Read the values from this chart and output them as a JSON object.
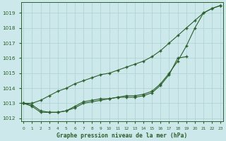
{
  "title": "Graphe pression niveau de la mer (hPa)",
  "background_color": "#cce8ea",
  "grid_color": "#b0d4d4",
  "line_color": "#2a5e2a",
  "ylim": [
    1011.8,
    1019.7
  ],
  "yticks": [
    1012,
    1013,
    1014,
    1015,
    1016,
    1017,
    1018,
    1019
  ],
  "x_labels": [
    "0",
    "1",
    "2",
    "3",
    "4",
    "5",
    "6",
    "7",
    "8",
    "9",
    "10",
    "11",
    "12",
    "13",
    "14",
    "15",
    "16",
    "17",
    "18",
    "19",
    "20",
    "21",
    "22",
    "23"
  ],
  "line1": [
    1013.0,
    1013.0,
    1013.2,
    1013.5,
    1013.8,
    1014.0,
    1014.3,
    1014.5,
    1014.7,
    1014.9,
    1015.0,
    1015.2,
    1015.4,
    1015.6,
    1015.8,
    1016.1,
    1016.5,
    1017.0,
    1017.5,
    1018.0,
    1018.5,
    1019.0,
    1019.3,
    1019.5
  ],
  "line2": [
    1013.0,
    1012.9,
    1012.5,
    1012.4,
    1012.4,
    1012.5,
    1012.7,
    1013.0,
    1013.1,
    1013.2,
    1013.3,
    1013.4,
    1013.5,
    1013.5,
    1013.6,
    1013.8,
    1014.3,
    1015.0,
    1015.8,
    1016.8,
    1018.0,
    1019.0,
    1019.3,
    1019.5
  ],
  "line3": [
    1013.0,
    1012.8,
    1012.4,
    1012.4,
    1012.4,
    1012.5,
    1012.8,
    1013.1,
    1013.2,
    1013.3,
    1013.3,
    1013.4,
    1013.4,
    1013.4,
    1013.5,
    1013.7,
    1014.2,
    1014.9,
    1016.0,
    1016.1,
    null,
    null,
    null,
    null
  ]
}
